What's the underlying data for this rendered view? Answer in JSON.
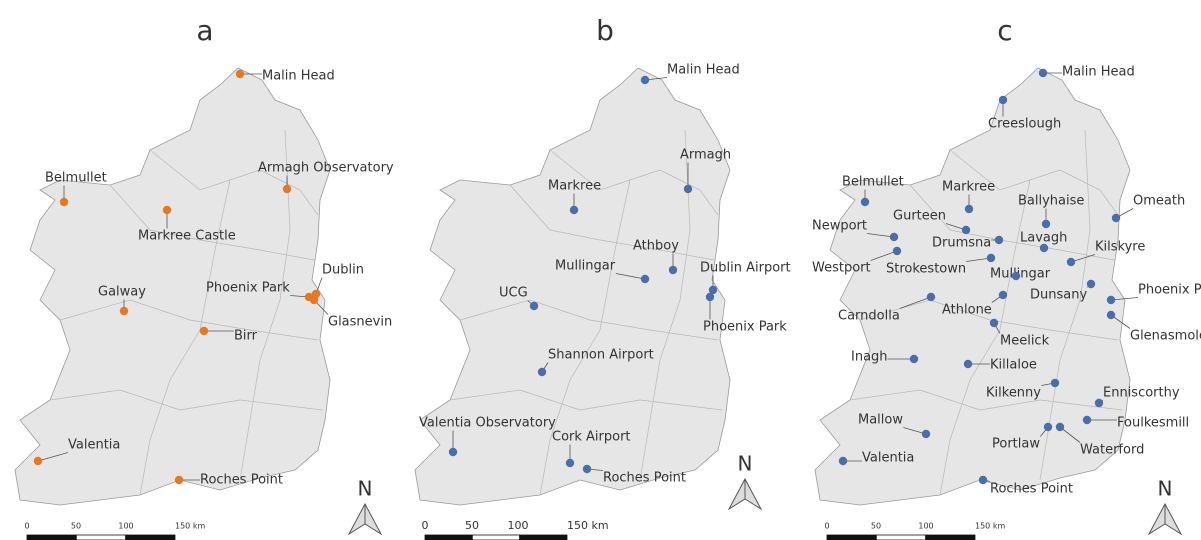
{
  "panels": [
    {
      "title": "a",
      "marker_color": "#e87722",
      "stations": [
        "Malin Head",
        "Belmullet",
        "Markree Castle",
        "Armagh Observatory",
        "Galway",
        "Phoenix Park",
        "Dublin",
        "Glasnevin",
        "Birr",
        "Valentia",
        "Roches Point"
      ],
      "scale_labels": [
        "0",
        "50",
        "100",
        "150 km"
      ],
      "north": "N"
    },
    {
      "title": "b",
      "marker_color": "#4a6ea8",
      "stations": [
        "Malin Head",
        "Armagh",
        "Markree",
        "Athboy",
        "Mullingar",
        "Dublin Airport",
        "Phoenix Park",
        "UCG",
        "Shannon Airport",
        "Valentia Observatory",
        "Cork Airport",
        "Roches Point"
      ],
      "scale_labels": [
        "0",
        "50",
        "100",
        "150 km"
      ],
      "north": "N"
    },
    {
      "title": "c",
      "marker_color": "#4a6ea8",
      "stations": [
        "Malin Head",
        "Creeslough",
        "Belmullet",
        "Markree",
        "Ballyhaise",
        "Omeath",
        "Gurteen",
        "Newport",
        "Drumsna",
        "Lavagh",
        "Kilskyre",
        "Westport",
        "Strokestown",
        "Mullingar",
        "Phoenix Park",
        "Dunsany",
        "Carndolla",
        "Athlone",
        "Glenasmole",
        "Meelick",
        "Inagh",
        "Killaloe",
        "Kilkenny",
        "Enniscorthy",
        "Mallow",
        "Foulkesmill",
        "Portlaw",
        "Waterford",
        "Valentia",
        "Roches Point"
      ],
      "scale_labels": [
        "0",
        "50",
        "100",
        "150 km"
      ],
      "north": "N"
    }
  ]
}
